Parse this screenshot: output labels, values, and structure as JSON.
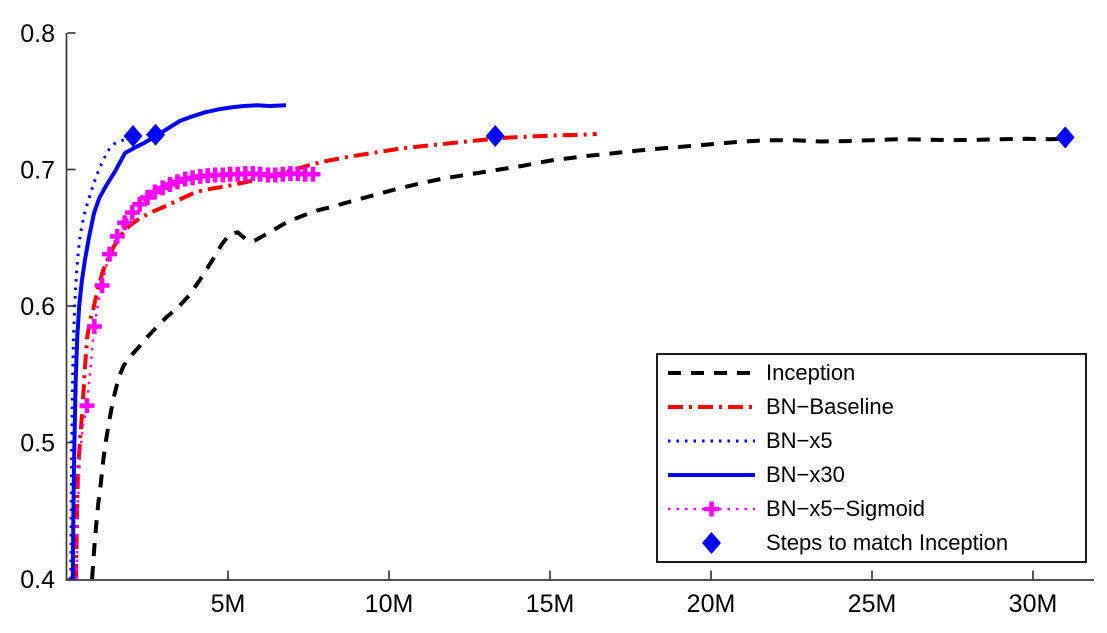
{
  "figure": {
    "background": "#ffffff",
    "axis_color": "#3a3a3a",
    "text_color": "#000000"
  },
  "chart_data": {
    "type": "line",
    "title": "",
    "xlabel": "",
    "ylabel": "",
    "x_unit": "training steps (millions)",
    "xlim_M": [
      0,
      32
    ],
    "ylim": [
      0.4,
      0.8
    ],
    "grid": false,
    "legend_position": "bottom-right",
    "x_ticks": [
      {
        "value": 5,
        "label": "5M"
      },
      {
        "value": 10,
        "label": "10M"
      },
      {
        "value": 15,
        "label": "15M"
      },
      {
        "value": 20,
        "label": "20M"
      },
      {
        "value": 25,
        "label": "25M"
      },
      {
        "value": 30,
        "label": "30M"
      }
    ],
    "y_ticks": [
      {
        "value": 0.4,
        "label": "0.4"
      },
      {
        "value": 0.5,
        "label": "0.5"
      },
      {
        "value": 0.6,
        "label": "0.6"
      },
      {
        "value": 0.7,
        "label": "0.7"
      },
      {
        "value": 0.8,
        "label": "0.8"
      }
    ],
    "series": [
      {
        "name": "Inception",
        "color": "#000000",
        "line": "dashed",
        "width": 4,
        "marker": null,
        "points": [
          [
            0.78,
            0.4
          ],
          [
            0.84,
            0.42
          ],
          [
            0.9,
            0.438
          ],
          [
            0.97,
            0.455
          ],
          [
            1.05,
            0.47
          ],
          [
            1.13,
            0.488
          ],
          [
            1.22,
            0.503
          ],
          [
            1.32,
            0.517
          ],
          [
            1.44,
            0.532
          ],
          [
            1.6,
            0.547
          ],
          [
            1.75,
            0.556
          ],
          [
            2.0,
            0.564
          ],
          [
            2.2,
            0.569
          ],
          [
            2.5,
            0.5775
          ],
          [
            2.8,
            0.585
          ],
          [
            3.1,
            0.592
          ],
          [
            3.45,
            0.599
          ],
          [
            3.8,
            0.608
          ],
          [
            4.15,
            0.62
          ],
          [
            4.5,
            0.633
          ],
          [
            4.8,
            0.645
          ],
          [
            5.05,
            0.6525
          ],
          [
            5.3,
            0.654
          ],
          [
            5.55,
            0.649
          ],
          [
            5.8,
            0.6475
          ],
          [
            6.1,
            0.6515
          ],
          [
            6.4,
            0.6555
          ],
          [
            6.8,
            0.661
          ],
          [
            7.2,
            0.665
          ],
          [
            7.7,
            0.6695
          ],
          [
            8.2,
            0.6725
          ],
          [
            8.8,
            0.6765
          ],
          [
            9.5,
            0.681
          ],
          [
            10.2,
            0.6855
          ],
          [
            11.0,
            0.69
          ],
          [
            11.7,
            0.6935
          ],
          [
            12.5,
            0.6965
          ],
          [
            13.3,
            0.6995
          ],
          [
            14.1,
            0.7025
          ],
          [
            15.0,
            0.7065
          ],
          [
            16.0,
            0.7095
          ],
          [
            17.0,
            0.712
          ],
          [
            18.0,
            0.7145
          ],
          [
            19.0,
            0.7165
          ],
          [
            20.0,
            0.7185
          ],
          [
            21.0,
            0.7205
          ],
          [
            21.8,
            0.7215
          ],
          [
            22.6,
            0.7215
          ],
          [
            23.4,
            0.7205
          ],
          [
            24.2,
            0.7208
          ],
          [
            25.0,
            0.7215
          ],
          [
            25.8,
            0.7222
          ],
          [
            26.6,
            0.722
          ],
          [
            27.4,
            0.7215
          ],
          [
            28.2,
            0.7217
          ],
          [
            29.0,
            0.7222
          ],
          [
            29.8,
            0.7225
          ],
          [
            30.5,
            0.7222
          ],
          [
            31.0,
            0.7225
          ]
        ]
      },
      {
        "name": "BN−Baseline",
        "color": "#ff0000",
        "line": "dashdot",
        "width": 4,
        "marker": null,
        "points": [
          [
            0.28,
            0.4
          ],
          [
            0.31,
            0.445
          ],
          [
            0.34,
            0.478
          ],
          [
            0.4,
            0.5
          ],
          [
            0.48,
            0.525
          ],
          [
            0.55,
            0.552
          ],
          [
            0.62,
            0.576
          ],
          [
            0.72,
            0.59
          ],
          [
            0.82,
            0.598
          ],
          [
            0.95,
            0.612
          ],
          [
            1.1,
            0.6245
          ],
          [
            1.25,
            0.6335
          ],
          [
            1.45,
            0.6435
          ],
          [
            1.7,
            0.6525
          ],
          [
            1.95,
            0.659
          ],
          [
            2.25,
            0.664
          ],
          [
            2.6,
            0.6685
          ],
          [
            3.0,
            0.6725
          ],
          [
            3.5,
            0.678
          ],
          [
            4.0,
            0.6835
          ],
          [
            4.5,
            0.686
          ],
          [
            5.0,
            0.688
          ],
          [
            5.5,
            0.6905
          ],
          [
            6.0,
            0.693
          ],
          [
            6.5,
            0.696
          ],
          [
            7.0,
            0.6995
          ],
          [
            7.5,
            0.703
          ],
          [
            8.0,
            0.706
          ],
          [
            8.8,
            0.7095
          ],
          [
            9.6,
            0.7125
          ],
          [
            10.4,
            0.7155
          ],
          [
            11.2,
            0.7175
          ],
          [
            12.0,
            0.7195
          ],
          [
            12.8,
            0.7215
          ],
          [
            13.6,
            0.7232
          ],
          [
            14.4,
            0.7242
          ],
          [
            15.2,
            0.725
          ],
          [
            16.0,
            0.7255
          ],
          [
            16.45,
            0.726
          ]
        ]
      },
      {
        "name": "BN−x5",
        "color": "#0000ff",
        "line": "dotted",
        "width": 3,
        "marker": null,
        "points": [
          [
            0.12,
            0.4
          ],
          [
            0.13,
            0.45
          ],
          [
            0.15,
            0.5
          ],
          [
            0.17,
            0.54
          ],
          [
            0.2,
            0.575
          ],
          [
            0.24,
            0.6
          ],
          [
            0.29,
            0.622
          ],
          [
            0.35,
            0.64
          ],
          [
            0.42,
            0.6535
          ],
          [
            0.52,
            0.665
          ],
          [
            0.63,
            0.675
          ],
          [
            0.75,
            0.684
          ],
          [
            0.88,
            0.693
          ],
          [
            1.0,
            0.7005
          ],
          [
            1.15,
            0.708
          ],
          [
            1.3,
            0.7145
          ],
          [
            1.45,
            0.7185
          ],
          [
            1.6,
            0.7205
          ],
          [
            1.8,
            0.722
          ],
          [
            2.0,
            0.7235
          ],
          [
            2.15,
            0.724
          ]
        ]
      },
      {
        "name": "BN−x30",
        "color": "#0000ff",
        "line": "solid",
        "width": 4,
        "marker": null,
        "points": [
          [
            0.18,
            0.4
          ],
          [
            0.2,
            0.45
          ],
          [
            0.23,
            0.5
          ],
          [
            0.27,
            0.545
          ],
          [
            0.32,
            0.578
          ],
          [
            0.38,
            0.6
          ],
          [
            0.46,
            0.618
          ],
          [
            0.56,
            0.634
          ],
          [
            0.68,
            0.65
          ],
          [
            0.84,
            0.668
          ],
          [
            1.0,
            0.679
          ],
          [
            1.2,
            0.6875
          ],
          [
            1.5,
            0.699
          ],
          [
            1.8,
            0.712
          ],
          [
            2.1,
            0.716
          ],
          [
            2.4,
            0.7195
          ],
          [
            2.75,
            0.7245
          ],
          [
            3.1,
            0.7295
          ],
          [
            3.5,
            0.7355
          ],
          [
            3.9,
            0.739
          ],
          [
            4.3,
            0.742
          ],
          [
            4.7,
            0.744
          ],
          [
            5.1,
            0.7455
          ],
          [
            5.5,
            0.7465
          ],
          [
            5.9,
            0.747
          ],
          [
            6.3,
            0.7465
          ],
          [
            6.8,
            0.747
          ]
        ]
      },
      {
        "name": "BN−x5−Sigmoid",
        "color": "#ff00ff",
        "line": "dotted",
        "width": 2.5,
        "marker": "plus",
        "points": [
          [
            0.3,
            0.4
          ],
          [
            0.33,
            0.45
          ],
          [
            0.4,
            0.49
          ],
          [
            0.5,
            0.513
          ],
          [
            0.62,
            0.527
          ],
          [
            0.74,
            0.557
          ],
          [
            0.85,
            0.585
          ],
          [
            0.97,
            0.6025
          ],
          [
            1.09,
            0.615
          ],
          [
            1.21,
            0.628
          ],
          [
            1.32,
            0.638
          ],
          [
            1.44,
            0.6455
          ],
          [
            1.56,
            0.651
          ],
          [
            1.68,
            0.6565
          ],
          [
            1.79,
            0.661
          ],
          [
            1.91,
            0.665
          ],
          [
            2.03,
            0.6685
          ],
          [
            2.15,
            0.6715
          ],
          [
            2.26,
            0.6745
          ],
          [
            2.38,
            0.677
          ],
          [
            2.5,
            0.6795
          ],
          [
            2.62,
            0.6815
          ],
          [
            2.73,
            0.6835
          ],
          [
            2.85,
            0.685
          ],
          [
            2.97,
            0.6865
          ],
          [
            3.08,
            0.6878
          ],
          [
            3.2,
            0.689
          ],
          [
            3.32,
            0.69
          ],
          [
            3.43,
            0.691
          ],
          [
            3.55,
            0.692
          ],
          [
            3.67,
            0.693
          ],
          [
            3.78,
            0.6935
          ],
          [
            3.9,
            0.694
          ],
          [
            4.02,
            0.6945
          ],
          [
            4.14,
            0.695
          ],
          [
            4.25,
            0.6952
          ],
          [
            4.37,
            0.6955
          ],
          [
            4.49,
            0.6958
          ],
          [
            4.6,
            0.696
          ],
          [
            4.72,
            0.696
          ],
          [
            4.84,
            0.696
          ],
          [
            4.95,
            0.6962
          ],
          [
            5.07,
            0.6965
          ],
          [
            5.19,
            0.6965
          ],
          [
            5.3,
            0.6965
          ],
          [
            5.42,
            0.6968
          ],
          [
            5.54,
            0.697
          ],
          [
            5.65,
            0.697
          ],
          [
            5.77,
            0.697
          ],
          [
            5.89,
            0.6968
          ],
          [
            6.0,
            0.6965
          ],
          [
            6.12,
            0.696
          ],
          [
            6.24,
            0.696
          ],
          [
            6.35,
            0.696
          ],
          [
            6.47,
            0.696
          ],
          [
            6.59,
            0.6962
          ],
          [
            6.7,
            0.6965
          ],
          [
            6.82,
            0.6968
          ],
          [
            6.94,
            0.697
          ],
          [
            7.05,
            0.697
          ],
          [
            7.17,
            0.697
          ],
          [
            7.29,
            0.6968
          ],
          [
            7.4,
            0.6965
          ],
          [
            7.52,
            0.6965
          ],
          [
            7.64,
            0.6965
          ],
          [
            7.8,
            0.6965
          ],
          [
            7.9,
            0.6965
          ]
        ],
        "marker_points": [
          [
            0.62,
            0.527
          ],
          [
            0.85,
            0.585
          ],
          [
            1.09,
            0.615
          ],
          [
            1.32,
            0.638
          ],
          [
            1.56,
            0.651
          ],
          [
            1.79,
            0.661
          ],
          [
            2.03,
            0.6685
          ],
          [
            2.26,
            0.6745
          ],
          [
            2.5,
            0.6795
          ],
          [
            2.73,
            0.6835
          ],
          [
            2.97,
            0.6865
          ],
          [
            3.2,
            0.689
          ],
          [
            3.43,
            0.691
          ],
          [
            3.67,
            0.693
          ],
          [
            3.9,
            0.694
          ],
          [
            4.14,
            0.695
          ],
          [
            4.37,
            0.6955
          ],
          [
            4.6,
            0.696
          ],
          [
            4.84,
            0.696
          ],
          [
            5.07,
            0.6965
          ],
          [
            5.3,
            0.6965
          ],
          [
            5.54,
            0.697
          ],
          [
            5.77,
            0.697
          ],
          [
            6.0,
            0.6965
          ],
          [
            6.24,
            0.696
          ],
          [
            6.47,
            0.696
          ],
          [
            6.7,
            0.6965
          ],
          [
            6.94,
            0.697
          ],
          [
            7.17,
            0.697
          ],
          [
            7.4,
            0.6965
          ],
          [
            7.64,
            0.6965
          ]
        ]
      },
      {
        "name": "Steps to match Inception",
        "color": "#0000ff",
        "line": "none",
        "width": 0,
        "marker": "diamond",
        "points": [
          [
            2.05,
            0.7245
          ],
          [
            2.75,
            0.7255
          ],
          [
            13.3,
            0.7245
          ],
          [
            31.0,
            0.7235
          ]
        ]
      }
    ]
  }
}
